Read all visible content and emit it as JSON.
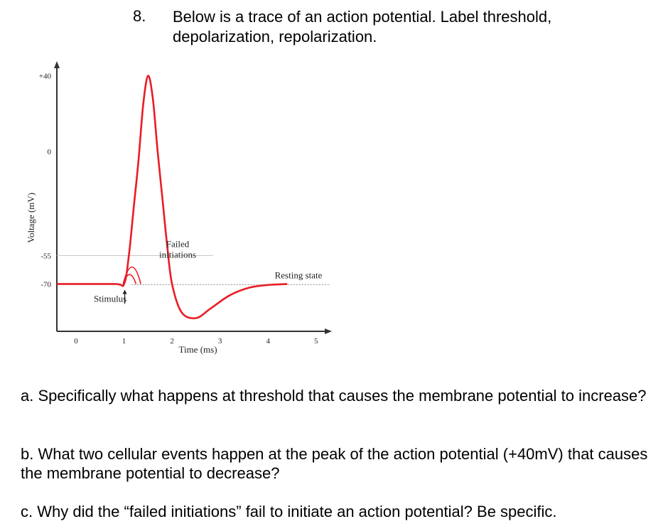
{
  "question": {
    "number": "8.",
    "text_lines": [
      "Below is a trace of an action potential.  Label threshold,",
      "depolarization, repolarization."
    ]
  },
  "chart_data": {
    "type": "line",
    "title": "",
    "xlabel": "Time (ms)",
    "ylabel": "Voltage (mV)",
    "x_ticks": [
      "0",
      "1",
      "2",
      "3",
      "4",
      "5"
    ],
    "y_ticks": [
      "+40",
      "0",
      "-55",
      "-70"
    ],
    "xlim": [
      -0.4,
      5.3
    ],
    "ylim": [
      -95,
      47
    ],
    "threshold_mV": -55,
    "resting_mV": -70,
    "series": [
      {
        "color": "#ea1c24",
        "points": [
          [
            -0.4,
            -70
          ],
          [
            0.8,
            -70
          ],
          [
            1.0,
            -70
          ],
          [
            1.1,
            -55
          ],
          [
            1.2,
            -30
          ],
          [
            1.3,
            -5
          ],
          [
            1.4,
            25
          ],
          [
            1.5,
            40
          ],
          [
            1.6,
            28
          ],
          [
            1.7,
            0
          ],
          [
            1.8,
            -25
          ],
          [
            1.9,
            -50
          ],
          [
            2.0,
            -70
          ],
          [
            2.2,
            -85
          ],
          [
            2.5,
            -88
          ],
          [
            2.8,
            -83
          ],
          [
            3.2,
            -76
          ],
          [
            3.6,
            -72
          ],
          [
            4.0,
            -70.5
          ],
          [
            4.4,
            -70
          ]
        ]
      }
    ],
    "failed_initiations": [
      {
        "start": 0.98,
        "end": 1.35,
        "peak_mV": -61
      },
      {
        "start": 0.98,
        "end": 1.25,
        "peak_mV": -65
      }
    ],
    "annotations": {
      "failed": [
        "Failed",
        "initiations"
      ],
      "resting": "Resting state",
      "stimulus": "Stimulus"
    },
    "colors": {
      "trace": "#ea1c24",
      "axis": "#333333",
      "guide": "#c8c8c8"
    }
  },
  "subquestions": [
    {
      "label": "a.",
      "text": "a. Specifically what happens at threshold that causes the membrane potential to increase?"
    },
    {
      "label": "b.",
      "text": "b. What two cellular events happen at the peak of the action potential (+40mV) that causes the membrane potential to decrease?"
    },
    {
      "label": "c.",
      "text": "c. Why did the “failed initiations” fail to initiate an action potential?  Be specific."
    }
  ]
}
